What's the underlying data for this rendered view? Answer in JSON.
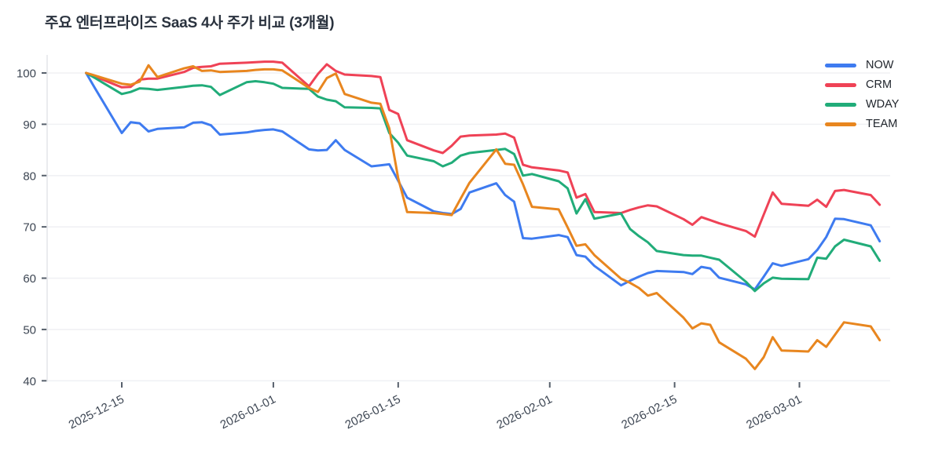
{
  "colors": {
    "background": "#ffffff",
    "grid": "#F0F1F4",
    "axis_line": "#E4E6EA",
    "tick": "#57606C",
    "axis_text": "#3D4653",
    "title_text": "#2A323E",
    "legend_text": "#21262D"
  },
  "chart_data": {
    "type": "line",
    "title": "주요 엔터프라이즈 SaaS 4사 주가 비교 (3개월)",
    "xlabel": "",
    "ylabel": "",
    "grid": "horizontal",
    "legend_position": "top-right",
    "y_axis": {
      "ticks": [
        100,
        90,
        80,
        70,
        60,
        50,
        40
      ],
      "range": [
        39.3,
        103.5
      ]
    },
    "x_axis": {
      "tick_labels": [
        "2025-12-15",
        "2026-01-01",
        "2026-01-15",
        "2026-02-01",
        "2026-02-15",
        "2026-03-01"
      ],
      "label_rotation_deg": -27
    },
    "x_dates": [
      "2025-12-11",
      "2025-12-12",
      "2025-12-15",
      "2025-12-16",
      "2025-12-17",
      "2025-12-18",
      "2025-12-19",
      "2025-12-22",
      "2025-12-23",
      "2025-12-24",
      "2025-12-25",
      "2025-12-26",
      "2025-12-29",
      "2025-12-30",
      "2025-12-31",
      "2026-01-01",
      "2026-01-02",
      "2026-01-05",
      "2026-01-06",
      "2026-01-07",
      "2026-01-08",
      "2026-01-09",
      "2026-01-12",
      "2026-01-13",
      "2026-01-14",
      "2026-01-15",
      "2026-01-16",
      "2026-01-19",
      "2026-01-20",
      "2026-01-21",
      "2026-01-22",
      "2026-01-23",
      "2026-01-26",
      "2026-01-27",
      "2026-01-28",
      "2026-01-29",
      "2026-01-30",
      "2026-02-02",
      "2026-02-03",
      "2026-02-04",
      "2026-02-05",
      "2026-02-06",
      "2026-02-09",
      "2026-02-10",
      "2026-02-11",
      "2026-02-12",
      "2026-02-13",
      "2026-02-16",
      "2026-02-17",
      "2026-02-18",
      "2026-02-19",
      "2026-02-20",
      "2026-02-23",
      "2026-02-24",
      "2026-02-25",
      "2026-02-26",
      "2026-02-27",
      "2026-03-02",
      "2026-03-03",
      "2026-03-04",
      "2026-03-05",
      "2026-03-06",
      "2026-03-09",
      "2026-03-10"
    ],
    "series": [
      {
        "name": "NOW",
        "color": "#3E7BF0",
        "values": [
          100,
          97.0,
          88.3,
          90.4,
          90.2,
          88.6,
          89.1,
          89.4,
          90.3,
          90.4,
          89.8,
          88.0,
          88.4,
          88.7,
          88.9,
          89.0,
          88.6,
          85.1,
          84.9,
          85.0,
          86.9,
          85.0,
          81.8,
          82.0,
          82.2,
          79.0,
          75.7,
          73.0,
          72.7,
          72.5,
          73.5,
          76.7,
          78.5,
          76.2,
          74.9,
          67.8,
          67.7,
          68.4,
          68.0,
          64.5,
          64.2,
          62.4,
          58.6,
          59.5,
          60.3,
          61.0,
          61.4,
          61.2,
          60.8,
          62.2,
          61.9,
          60.1,
          58.8,
          57.8,
          60.3,
          62.9,
          62.4,
          63.7,
          65.5,
          68.0,
          71.6,
          71.5,
          70.3,
          67.2
        ]
      },
      {
        "name": "CRM",
        "color": "#EF4256",
        "values": [
          100,
          99.3,
          97.2,
          97.3,
          98.7,
          98.9,
          98.9,
          100.2,
          101.0,
          101.2,
          101.3,
          101.8,
          102.0,
          102.1,
          102.2,
          102.2,
          102.0,
          97.4,
          99.8,
          101.7,
          100.4,
          99.7,
          99.4,
          99.2,
          92.8,
          92.0,
          86.9,
          84.9,
          84.4,
          85.8,
          87.6,
          87.8,
          88.0,
          88.2,
          87.4,
          82.1,
          81.6,
          81.0,
          80.6,
          75.7,
          76.4,
          72.9,
          72.7,
          73.3,
          73.8,
          74.2,
          74.0,
          71.5,
          70.4,
          71.9,
          71.3,
          70.7,
          69.2,
          68.1,
          72.4,
          76.7,
          74.5,
          74.1,
          75.3,
          73.9,
          77.0,
          77.2,
          76.2,
          74.3
        ]
      },
      {
        "name": "WDAY",
        "color": "#21AC79",
        "values": [
          100,
          99.0,
          95.9,
          96.3,
          97.0,
          96.9,
          96.7,
          97.3,
          97.5,
          97.6,
          97.3,
          95.7,
          98.2,
          98.4,
          98.2,
          97.9,
          97.1,
          96.9,
          95.4,
          94.8,
          94.5,
          93.3,
          93.2,
          93.1,
          88.3,
          86.4,
          83.9,
          82.8,
          81.8,
          82.5,
          83.9,
          84.4,
          85.0,
          85.2,
          84.2,
          80.0,
          80.3,
          78.9,
          77.5,
          72.6,
          75.4,
          71.6,
          72.6,
          69.6,
          68.2,
          67.0,
          65.3,
          64.5,
          64.4,
          64.4,
          64.0,
          63.6,
          59.3,
          57.5,
          59.0,
          60.1,
          59.9,
          59.8,
          64.0,
          63.8,
          66.2,
          67.5,
          66.2,
          63.4
        ]
      },
      {
        "name": "TEAM",
        "color": "#E8861F",
        "values": [
          100,
          99.5,
          97.9,
          97.7,
          98.3,
          101.5,
          99.2,
          100.9,
          101.3,
          100.4,
          100.5,
          100.2,
          100.4,
          100.6,
          100.7,
          100.7,
          100.5,
          97.1,
          96.3,
          99.0,
          99.9,
          95.9,
          94.2,
          94.0,
          89.2,
          79.5,
          72.9,
          72.7,
          72.5,
          72.3,
          75.5,
          78.6,
          85.1,
          82.3,
          82.1,
          78.3,
          73.9,
          73.4,
          69.9,
          66.3,
          66.6,
          64.5,
          59.9,
          59.1,
          58.1,
          56.6,
          57.1,
          52.3,
          50.2,
          51.2,
          50.9,
          47.5,
          44.3,
          42.3,
          44.6,
          48.5,
          45.9,
          45.7,
          47.9,
          46.6,
          49.0,
          51.4,
          50.6,
          47.9
        ]
      }
    ]
  }
}
